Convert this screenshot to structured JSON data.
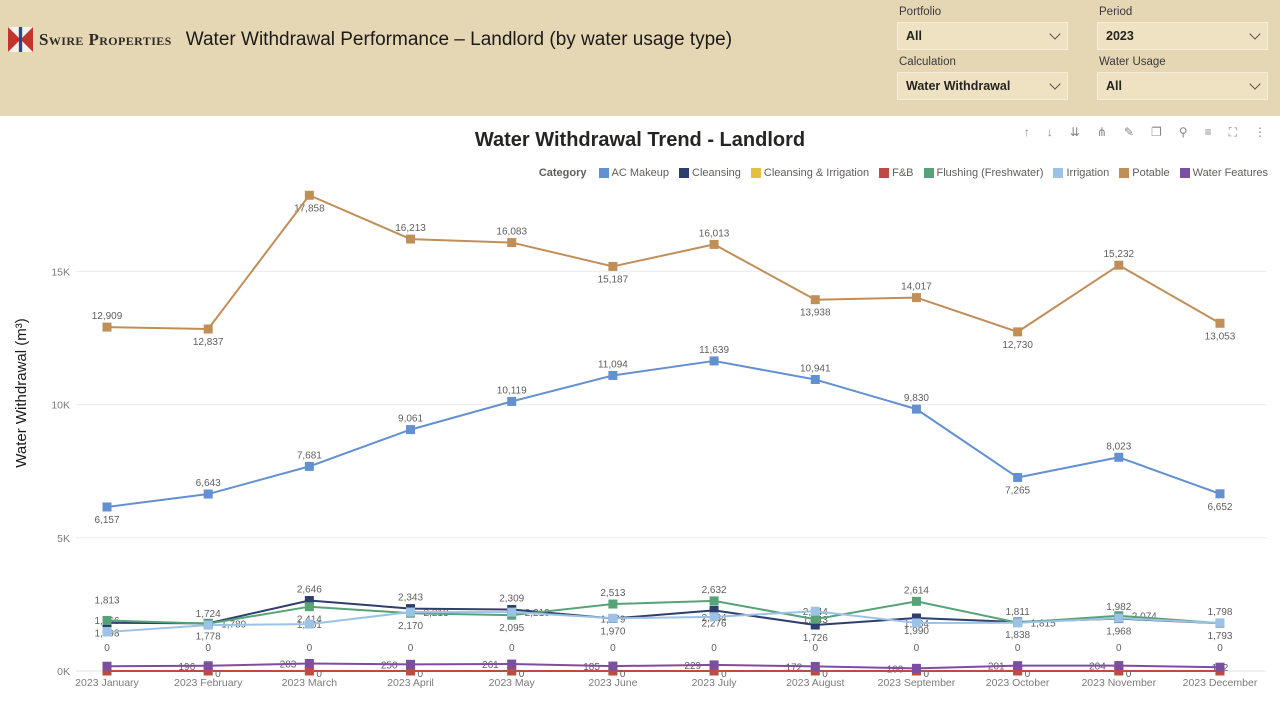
{
  "header": {
    "brand": "Swire Properties",
    "title": "Water Withdrawal Performance – Landlord (by water usage type)",
    "filters": [
      {
        "label": "Portfolio",
        "value": "All"
      },
      {
        "label": "Period",
        "value": "2023"
      },
      {
        "label": "Calculation",
        "value": "Water Withdrawal"
      },
      {
        "label": "Water Usage",
        "value": "All"
      }
    ]
  },
  "toolbar": {
    "icons": [
      {
        "name": "drill-up-icon",
        "glyph": "↑"
      },
      {
        "name": "drill-down-icon",
        "glyph": "↓"
      },
      {
        "name": "go-to-next-level-icon",
        "glyph": "⇊"
      },
      {
        "name": "expand-all-levels-icon",
        "glyph": "⋔"
      },
      {
        "name": "pin-icon",
        "glyph": "✎"
      },
      {
        "name": "copy-icon",
        "glyph": "❐"
      },
      {
        "name": "search-icon",
        "glyph": "⚲"
      },
      {
        "name": "filter-icon",
        "glyph": "≡"
      },
      {
        "name": "focus-mode-icon",
        "glyph": "⛶"
      },
      {
        "name": "more-options-icon",
        "glyph": "⋮"
      }
    ]
  },
  "chart_data": {
    "type": "line",
    "title": "Water Withdrawal Trend - Landlord",
    "ylabel": "Water Withdrawal (m³)",
    "legend_title": "Category",
    "legend_position": "top",
    "grid": true,
    "ylim": [
      0,
      18000
    ],
    "y_ticks": [
      "0K",
      "5K",
      "10K",
      "15K"
    ],
    "y_tick_values": [
      0,
      5000,
      10000,
      15000
    ],
    "categories": [
      "2023 January",
      "2023 February",
      "2023 March",
      "2023 April",
      "2023 May",
      "2023 June",
      "2023 July",
      "2023 August",
      "2023 September",
      "2023 October",
      "2023 November",
      "2023 December"
    ],
    "series": [
      {
        "name": "AC Makeup",
        "color": "#6290d0",
        "values": [
          6157,
          6643,
          7681,
          9061,
          10119,
          11094,
          11639,
          10941,
          9830,
          7265,
          8023,
          6652
        ],
        "labels": [
          "6,157",
          "6,643",
          "7,681",
          "9,061",
          "10,119",
          "11,094",
          "11,639",
          "10,941",
          "9,830",
          "7,265",
          "8,023",
          "6,652"
        ],
        "placements": [
          "b",
          "a",
          "a",
          "a",
          "a",
          "a",
          "a",
          "a",
          "a",
          "b",
          "a",
          "b"
        ]
      },
      {
        "name": "Cleansing",
        "color": "#2e3f6e",
        "values": [
          1813,
          1789,
          2646,
          2343,
          2309,
          1970,
          2276,
          1726,
          1990,
          1838,
          1968,
          1793
        ],
        "labels": [
          "1,813",
          "1,789",
          "2,646",
          "2,343",
          "2,309",
          "1,970",
          "2,276",
          "1,726",
          "1,990",
          "1,838",
          "1,968",
          "1,793"
        ],
        "placements": [
          "a2",
          "r",
          "a",
          "a",
          "a",
          "b",
          "b",
          "b",
          "b",
          "b",
          "b",
          "b"
        ]
      },
      {
        "name": "Cleansing & Irrigation",
        "color": "#e3c041",
        "values": [
          0,
          0,
          0,
          0,
          0,
          0,
          0,
          0,
          0,
          0,
          0,
          0
        ],
        "labels": [
          "0",
          "0",
          "0",
          "0",
          "0",
          "0",
          "0",
          "0",
          "0",
          "0",
          "0",
          "0"
        ],
        "placements": [
          "t",
          "t",
          "t",
          "t",
          "t",
          "t",
          "t",
          "t",
          "t",
          "t",
          "t",
          "t"
        ]
      },
      {
        "name": "F&B",
        "color": "#bd4b45",
        "values": [
          0,
          0,
          0,
          0,
          0,
          0,
          0,
          0,
          0,
          0,
          0,
          0
        ],
        "labels": [
          null,
          "0",
          "0",
          "0",
          "0",
          "0",
          "0",
          "0",
          "0",
          "0",
          "0",
          null
        ],
        "placements": [
          "n",
          "u",
          "u",
          "u",
          "u",
          "u",
          "u",
          "u",
          "u",
          "u",
          "u",
          "n"
        ]
      },
      {
        "name": "Flushing (Freshwater)",
        "color": "#57a278",
        "values": [
          1898,
          1778,
          2414,
          2170,
          2095,
          2513,
          2632,
          1943,
          2614,
          1815,
          2074,
          1793
        ],
        "labels": [
          "1,898",
          "1,778",
          "2,414",
          "2,170",
          "2,095",
          "2,513",
          "2,632",
          "1,943",
          "2,614",
          "1,815",
          "2,074",
          null
        ],
        "placements": [
          "b",
          "b",
          "b",
          "b",
          "b",
          "a",
          "a",
          "c",
          "a",
          "r",
          "r",
          "n"
        ]
      },
      {
        "name": "Irrigation",
        "color": "#9cc3e5",
        "values": [
          1466,
          1724,
          1761,
          2213,
          2210,
          1979,
          2034,
          2244,
          1804,
          1811,
          1982,
          1798
        ],
        "labels": [
          "1,466",
          "1,724",
          "1,761",
          "2,213",
          "2,210",
          "1,979",
          "2,034",
          "2,244",
          "1,804",
          "1,811",
          "1,982",
          "1,798"
        ],
        "placements": [
          "a",
          "a",
          "c",
          "r",
          "r",
          "c",
          "c",
          "c",
          "c",
          "a",
          "a",
          "a"
        ]
      },
      {
        "name": "Potable",
        "color": "#c08f58",
        "values": [
          12909,
          12837,
          17858,
          16213,
          16083,
          15187,
          16013,
          13938,
          14017,
          12730,
          15232,
          13053
        ],
        "labels": [
          "12,909",
          "12,837",
          "17,858",
          "16,213",
          "16,083",
          "15,187",
          "16,013",
          "13,938",
          "14,017",
          "12,730",
          "15,232",
          "13,053"
        ],
        "placements": [
          "a",
          "b",
          "b",
          "a",
          "a",
          "b",
          "a",
          "b",
          "a",
          "b",
          "a",
          "b"
        ]
      },
      {
        "name": "Water Features",
        "color": "#7a4fa0",
        "values": [
          180,
          196,
          283,
          250,
          261,
          185,
          229,
          172,
          100,
          201,
          204,
          142
        ],
        "labels": [
          null,
          "196",
          "283",
          "250",
          "261",
          "185",
          "229",
          "172",
          "100",
          "201",
          "204",
          "142"
        ],
        "placements": [
          "n",
          "l",
          "l",
          "l",
          "l",
          "l",
          "l",
          "l",
          "l",
          "l",
          "l",
          "c"
        ]
      }
    ]
  }
}
